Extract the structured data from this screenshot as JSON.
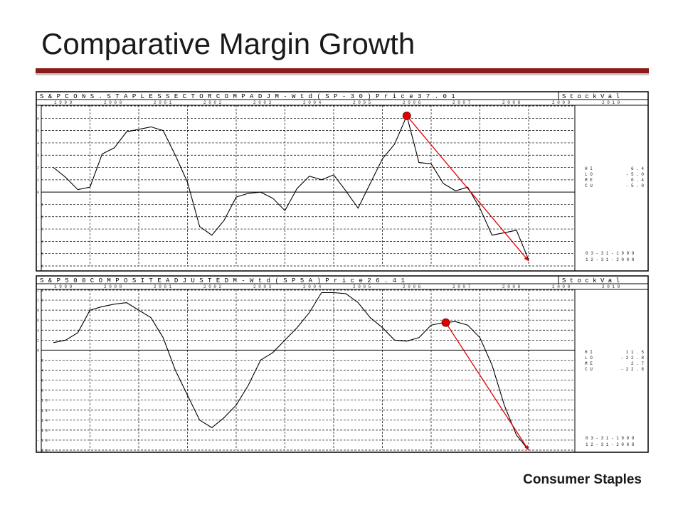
{
  "slide": {
    "title": "Comparative Margin Growth",
    "footer": "Consumer Staples"
  },
  "colors": {
    "accent_rule": "#8b1a1a",
    "marker": "#e00000",
    "trend": "#e00000",
    "series": "#000000"
  },
  "chart_data": [
    {
      "type": "line",
      "header": "S&P CONS. STAPLES SECTOR COMP ADJ M-Wtd (SP-30) Price 37.01",
      "brand": "StockVal",
      "footer_caption": "",
      "years": [
        "1999",
        "2000",
        "2001",
        "2002",
        "2003",
        "2004",
        "2005",
        "2006",
        "2007",
        "2008",
        "2009",
        "2010"
      ],
      "ylim": [
        -6,
        7
      ],
      "yticks": [
        "7",
        "6",
        "5",
        "4",
        "3",
        "2",
        "1",
        "0",
        "-1",
        "-2",
        "-3",
        "-4",
        "-5",
        "-6"
      ],
      "series": [
        {
          "x": [
            1999.25,
            1999.5,
            1999.75,
            2000.0,
            2000.25,
            2000.5,
            2000.75,
            2001.0,
            2001.25,
            2001.5,
            2001.75,
            2002.0,
            2002.25,
            2002.5,
            2002.75,
            2003.0,
            2003.25,
            2003.5,
            2003.75,
            2004.0,
            2004.25,
            2004.5,
            2004.75,
            2005.0,
            2005.25,
            2005.5,
            2005.75,
            2006.0,
            2006.25,
            2006.5,
            2006.75,
            2007.0,
            2007.25,
            2007.5,
            2007.75,
            2008.0,
            2008.25,
            2008.5,
            2008.75,
            2009.0
          ],
          "values": [
            2.0,
            1.2,
            0.2,
            0.4,
            3.1,
            3.6,
            4.9,
            5.1,
            5.3,
            5.0,
            3.0,
            0.8,
            -2.8,
            -3.5,
            -2.3,
            -0.4,
            -0.1,
            0.0,
            -0.5,
            -1.5,
            0.3,
            1.3,
            1.0,
            1.4,
            0.1,
            -1.3,
            0.7,
            2.7,
            3.9,
            6.2,
            2.4,
            2.3,
            0.7,
            0.1,
            0.4,
            -1.3,
            -3.5,
            -3.3,
            -3.1,
            -5.5
          ]
        }
      ],
      "stats": [
        {
          "label": "HI",
          "value": "6.4"
        },
        {
          "label": "LO",
          "value": "-5.0"
        },
        {
          "label": "ME",
          "value": "0.4"
        },
        {
          "label": "CU",
          "value": "-5.0"
        }
      ],
      "dates": [
        "03-31-1999",
        "12-31-2008"
      ],
      "trend": {
        "from": [
          2006.5,
          6.2
        ],
        "to": [
          2009.0,
          -5.6
        ]
      },
      "zero_line": 0
    },
    {
      "type": "line",
      "header": "S&P 500 COMPOSITE ADJUSTED M-Wtd (SP5A) Price 26.41",
      "brand": "StockVal",
      "footer_caption": "",
      "years": [
        "1999",
        "2000",
        "2001",
        "2002",
        "2003",
        "2004",
        "2005",
        "2006",
        "2007",
        "2008",
        "2009",
        "2010"
      ],
      "ylim": [
        -20,
        12
      ],
      "yticks": [
        "12",
        "10",
        "8",
        "6",
        "4",
        "2",
        "0",
        "-2",
        "-4",
        "-6",
        "-8",
        "-10",
        "-12",
        "-14",
        "-16",
        "-18",
        "-20"
      ],
      "series": [
        {
          "x": [
            1999.25,
            1999.5,
            1999.75,
            2000.0,
            2000.25,
            2000.5,
            2000.75,
            2001.0,
            2001.25,
            2001.5,
            2001.75,
            2002.0,
            2002.25,
            2002.5,
            2002.75,
            2003.0,
            2003.25,
            2003.5,
            2003.75,
            2004.0,
            2004.25,
            2004.5,
            2004.75,
            2005.0,
            2005.25,
            2005.5,
            2005.75,
            2006.0,
            2006.25,
            2006.5,
            2006.75,
            2007.0,
            2007.25,
            2007.5,
            2007.75,
            2008.0,
            2008.25,
            2008.5,
            2008.75,
            2009.0
          ],
          "values": [
            1.5,
            2.0,
            3.5,
            8.0,
            8.7,
            9.2,
            9.5,
            8.0,
            6.5,
            2.5,
            -4.0,
            -9.0,
            -14.0,
            -15.5,
            -13.5,
            -11.0,
            -7.0,
            -2.0,
            -0.5,
            2.0,
            4.5,
            7.5,
            11.5,
            11.5,
            11.3,
            9.5,
            6.5,
            4.5,
            2.0,
            1.8,
            2.5,
            5.0,
            5.5,
            5.7,
            5.0,
            2.5,
            -3.0,
            -11.0,
            -17.0,
            -20.0
          ]
        }
      ],
      "stats": [
        {
          "label": "HI",
          "value": "11.5"
        },
        {
          "label": "LO",
          "value": "-22.8"
        },
        {
          "label": "ME",
          "value": "2.7"
        },
        {
          "label": "CU",
          "value": "-22.8"
        }
      ],
      "dates": [
        "03-31-1999",
        "12-31-2008"
      ],
      "trend": {
        "from": [
          2007.3,
          5.5
        ],
        "to": [
          2009.0,
          -20.0
        ]
      },
      "zero_line": 0
    }
  ]
}
